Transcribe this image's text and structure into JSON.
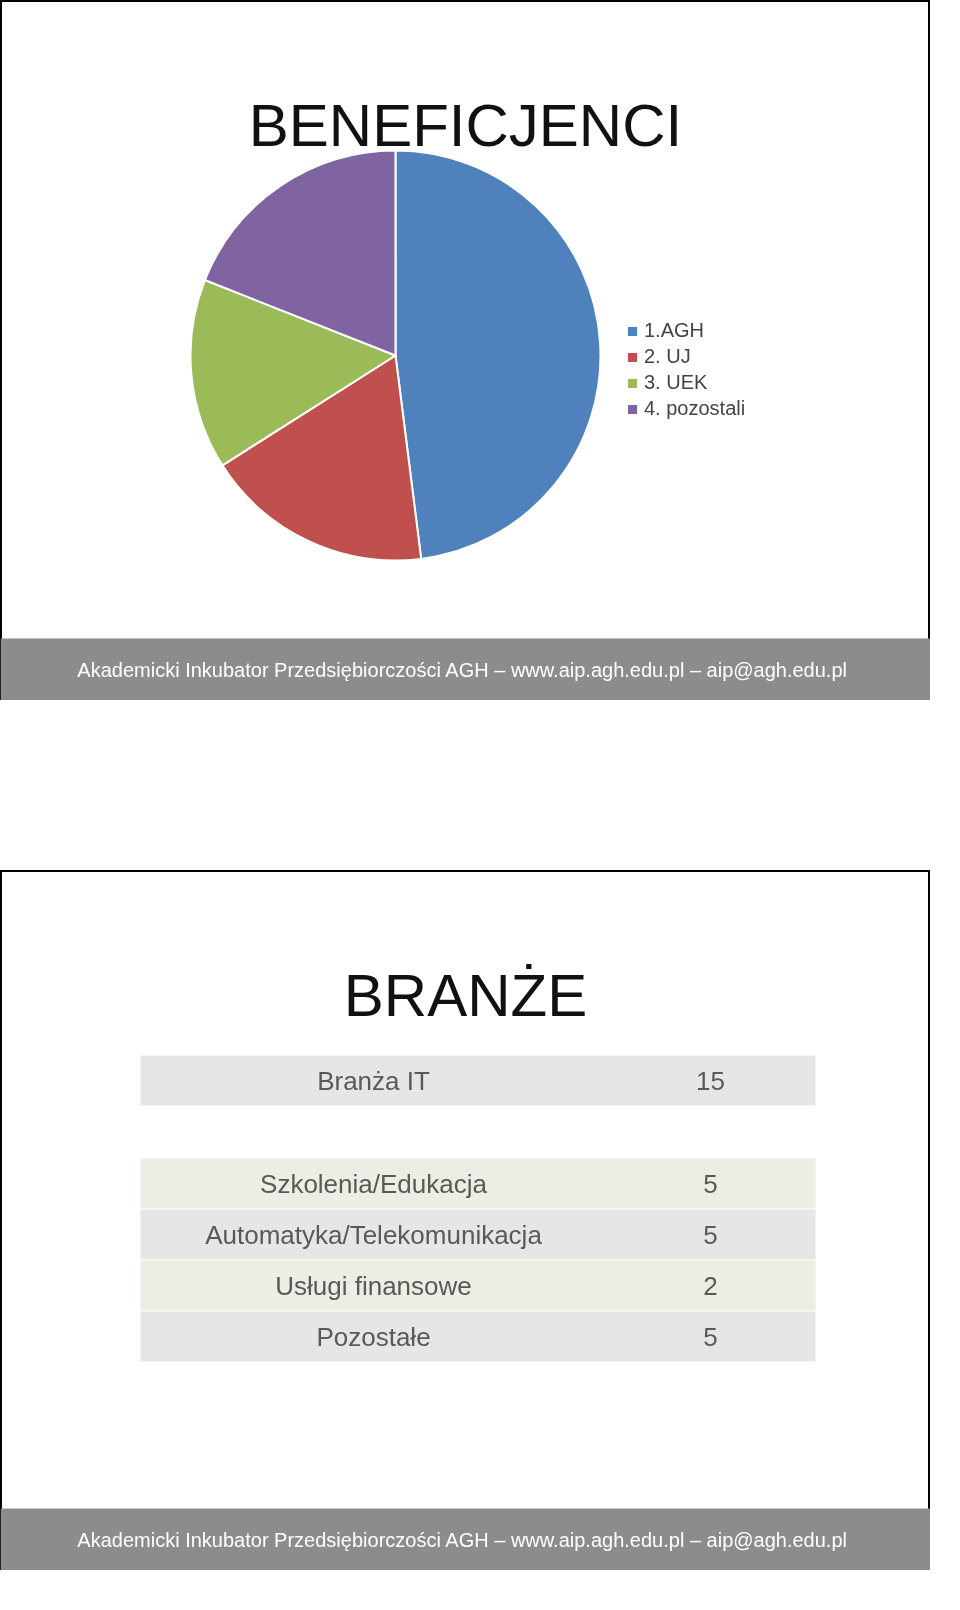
{
  "chart_data": [
    {
      "type": "pie",
      "title": "BENEFICJENCI",
      "categories": [
        "1.AGH",
        "2. UJ",
        "3. UEK",
        "4. pozostali"
      ],
      "values": [
        48,
        18,
        15,
        19
      ],
      "colors": [
        "#4f81bd",
        "#c0504d",
        "#9bbb59",
        "#8064a2"
      ],
      "legend": "right",
      "annotations": [
        "Akademicki Inkubator Przedsiębiorczości AGH –  www.aip.agh.edu.pl – aip@agh.edu.pl"
      ]
    },
    {
      "type": "other",
      "title": "BRANŻE",
      "categories": [
        "Branża IT",
        "Szkolenia/Edukacja",
        "Automatyka/Telekomunikacja",
        "Usługi finansowe",
        "Pozostałe"
      ],
      "values": [
        15,
        5,
        5,
        2,
        5
      ],
      "data_labels": true,
      "annotations": [
        "Akademicki Inkubator Przedsiębiorczości AGH –  www.aip.agh.edu.pl – aip@agh.edu.pl"
      ]
    }
  ]
}
